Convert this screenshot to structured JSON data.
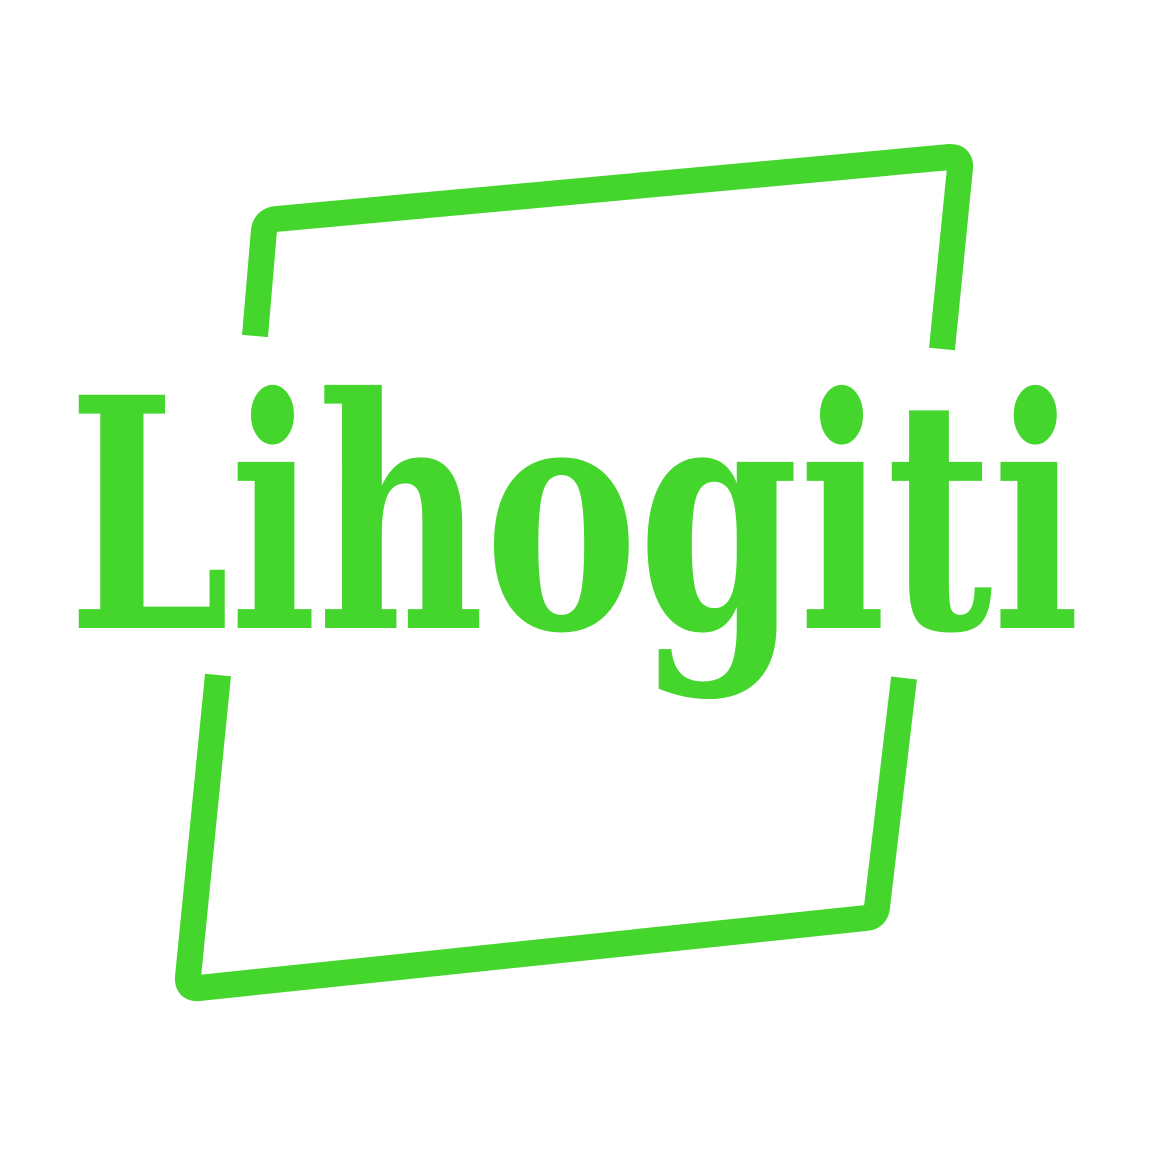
{
  "logo": {
    "text": "Lihogiti"
  }
}
